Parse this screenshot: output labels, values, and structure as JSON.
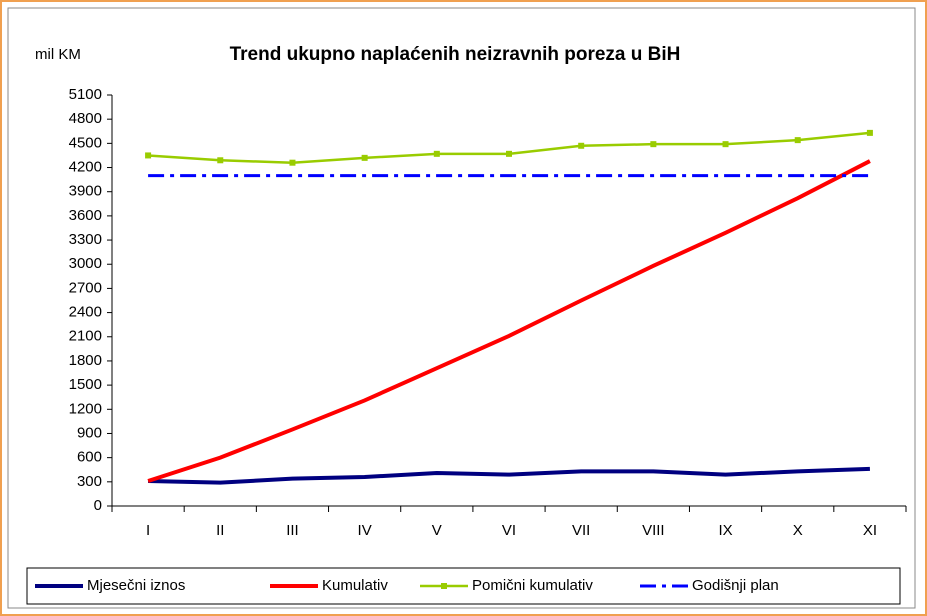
{
  "chart_data": {
    "type": "line",
    "title": "Trend ukupno naplaćenih neizravnih poreza u BiH",
    "y_label": "mil KM",
    "categories": [
      "I",
      "II",
      "III",
      "IV",
      "V",
      "VI",
      "VII",
      "VIII",
      "IX",
      "X",
      "XI"
    ],
    "series": [
      {
        "name": "Mjesečni iznos",
        "color": "#000080",
        "dash": false,
        "markers": false,
        "values": [
          310,
          290,
          340,
          360,
          410,
          390,
          430,
          430,
          390,
          430,
          460
        ]
      },
      {
        "name": "Kumulativ",
        "color": "#ff0000",
        "dash": false,
        "markers": false,
        "values": [
          310,
          600,
          950,
          1310,
          1710,
          2110,
          2550,
          2980,
          3390,
          3820,
          4280
        ]
      },
      {
        "name": "Pomični kumulativ",
        "color": "#99cc00",
        "dash": false,
        "markers": true,
        "values": [
          4350,
          4290,
          4260,
          4320,
          4370,
          4370,
          4470,
          4490,
          4490,
          4540,
          4630
        ]
      },
      {
        "name": "Godišnji plan",
        "color": "#0000ff",
        "dash": true,
        "markers": false,
        "values": [
          4100,
          4100,
          4100,
          4100,
          4100,
          4100,
          4100,
          4100,
          4100,
          4100,
          4100
        ]
      }
    ],
    "ylim": [
      0,
      5100
    ],
    "yticks": [
      0,
      300,
      600,
      900,
      1200,
      1500,
      1800,
      2100,
      2400,
      2700,
      3000,
      3300,
      3600,
      3900,
      4200,
      4500,
      4800,
      5100
    ],
    "legend": "bottom"
  }
}
